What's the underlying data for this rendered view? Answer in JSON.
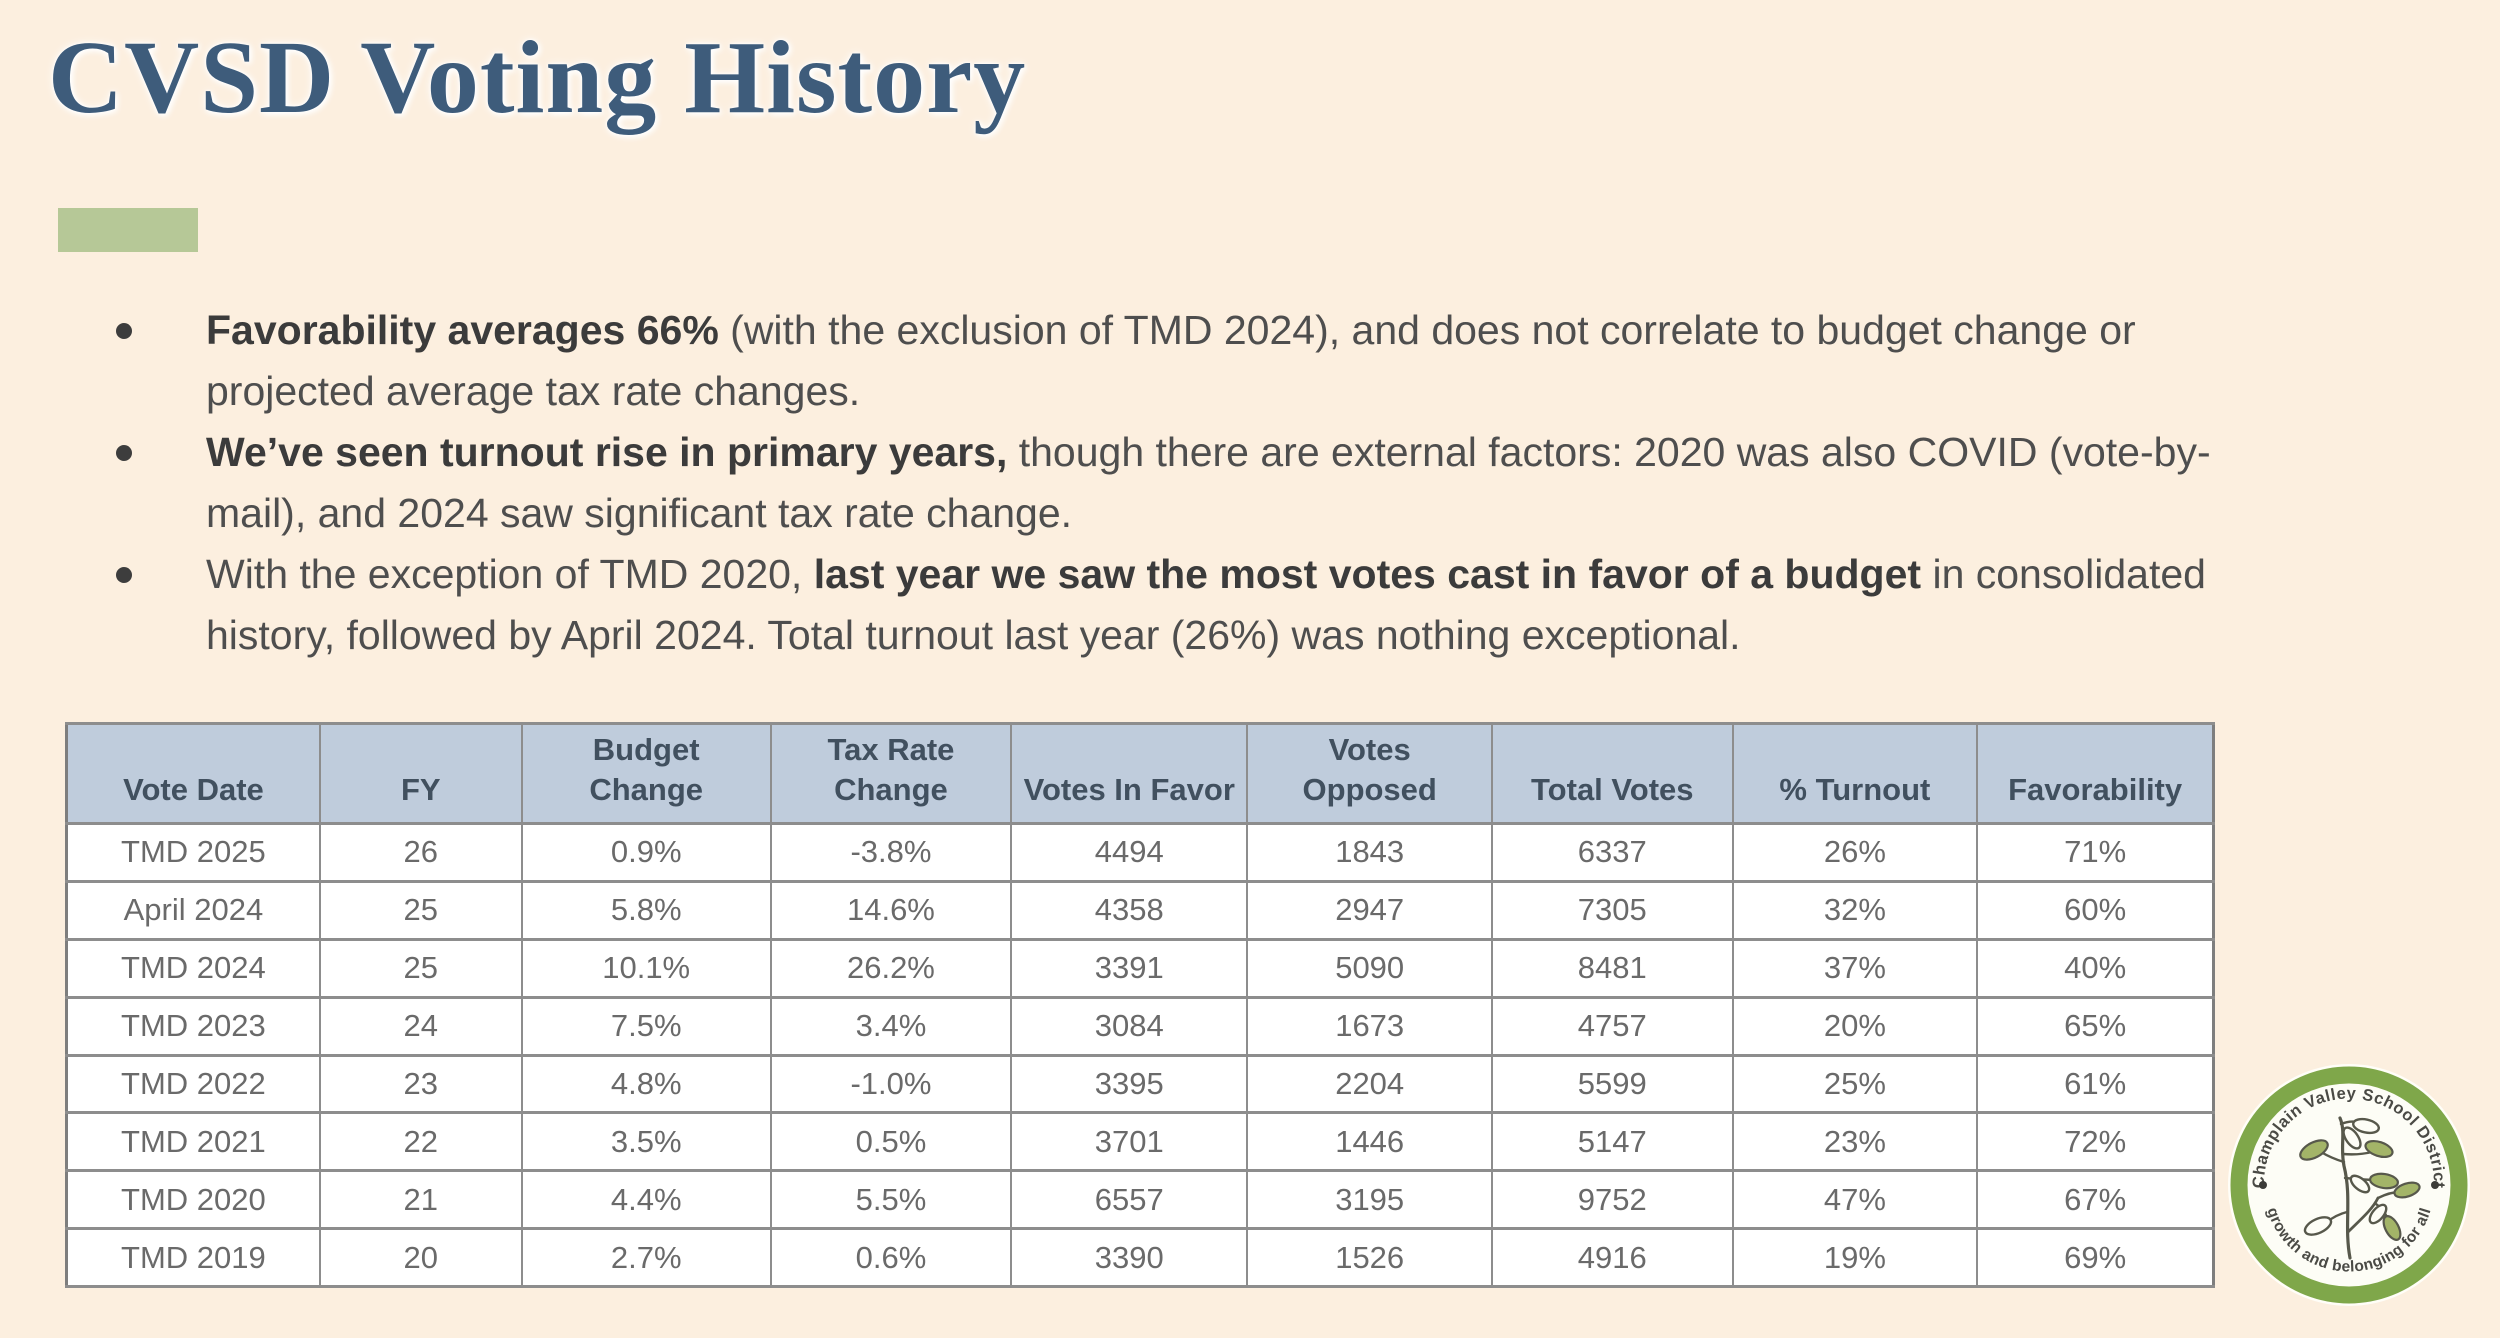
{
  "title": "CVSD Voting History",
  "bullets": [
    {
      "segments": [
        {
          "text": "Favorability averages 66%",
          "bold": true
        },
        {
          "text": " (with the exclusion of TMD 2024), and does not correlate to budget change or projected average tax rate changes.",
          "bold": false
        }
      ]
    },
    {
      "segments": [
        {
          "text": "We’ve seen turnout rise in primary years,",
          "bold": true
        },
        {
          "text": " though there are external factors: 2020 was also COVID (vote-by-mail), and 2024 saw significant tax rate change.",
          "bold": false
        }
      ]
    },
    {
      "segments": [
        {
          "text": "With the exception of TMD 2020, ",
          "bold": false
        },
        {
          "text": "last year we saw the most votes cast in favor of a budget",
          "bold": true
        },
        {
          "text": " in consolidated history, followed by April 2024. Total turnout last year (26%) was nothing exceptional.",
          "bold": false
        }
      ]
    }
  ],
  "table": {
    "headers": [
      "Vote Date",
      "FY",
      "Budget\nChange",
      "Tax Rate\nChange",
      "Votes In Favor",
      "Votes\nOpposed",
      "Total Votes",
      "% Turnout",
      "Favorability"
    ],
    "rows": [
      [
        "TMD 2025",
        "26",
        "0.9%",
        "-3.8%",
        "4494",
        "1843",
        "6337",
        "26%",
        "71%"
      ],
      [
        "April 2024",
        "25",
        "5.8%",
        "14.6%",
        "4358",
        "2947",
        "7305",
        "32%",
        "60%"
      ],
      [
        "TMD 2024",
        "25",
        "10.1%",
        "26.2%",
        "3391",
        "5090",
        "8481",
        "37%",
        "40%"
      ],
      [
        "TMD 2023",
        "24",
        "7.5%",
        "3.4%",
        "3084",
        "1673",
        "4757",
        "20%",
        "65%"
      ],
      [
        "TMD 2022",
        "23",
        "4.8%",
        "-1.0%",
        "3395",
        "2204",
        "5599",
        "25%",
        "61%"
      ],
      [
        "TMD 2021",
        "22",
        "3.5%",
        "0.5%",
        "3701",
        "1446",
        "5147",
        "23%",
        "72%"
      ],
      [
        "TMD 2020",
        "21",
        "4.4%",
        "5.5%",
        "6557",
        "3195",
        "9752",
        "47%",
        "67%"
      ],
      [
        "TMD 2019",
        "20",
        "2.7%",
        "0.6%",
        "3390",
        "1526",
        "4916",
        "19%",
        "69%"
      ]
    ]
  },
  "logo": {
    "top_text": "Champlain Valley School District",
    "bottom_text": "growth and belonging for all"
  },
  "colors": {
    "background": "#fcefdf",
    "title_blue": "#3e5c7b",
    "accent_green": "#b6c897",
    "table_header_bg": "#bfccdc",
    "table_border": "#8d8d8d",
    "logo_ring_green": "#7fa74a",
    "leaf_green": "#a3b468",
    "body_text": "#4e4e4e"
  }
}
